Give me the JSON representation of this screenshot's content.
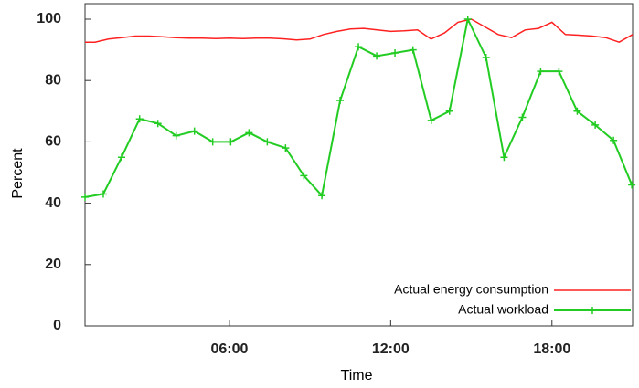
{
  "chart_data": {
    "type": "line",
    "xlabel": "Time",
    "ylabel": "Percent",
    "xlim": [
      0.63,
      21
    ],
    "ylim": [
      0,
      100
    ],
    "xticks": [
      {
        "value": 6,
        "label": "06:00"
      },
      {
        "value": 12,
        "label": "12:00"
      },
      {
        "value": 18,
        "label": "18:00"
      }
    ],
    "yticks": [
      0,
      20,
      40,
      60,
      80,
      100
    ],
    "grid": false,
    "legend": "lower right",
    "series": [
      {
        "name": "Actual energy consumption",
        "color": "#ff2020",
        "marker": false,
        "x": [
          0.63,
          1,
          1.5,
          2,
          2.5,
          3,
          3.5,
          4,
          4.5,
          5,
          5.5,
          6,
          6.5,
          7,
          7.5,
          8,
          8.5,
          9,
          9.5,
          10,
          10.5,
          11,
          11.5,
          12,
          12.5,
          13,
          13.5,
          14,
          14.5,
          15,
          15.5,
          16,
          16.5,
          17,
          17.5,
          18,
          18.5,
          19,
          19.5,
          20,
          20.5,
          21
        ],
        "values": [
          92.5,
          92.5,
          93.5,
          94,
          94.5,
          94.5,
          94.3,
          94,
          93.8,
          93.8,
          93.7,
          93.8,
          93.7,
          93.8,
          93.8,
          93.6,
          93.2,
          93.5,
          95,
          96,
          96.8,
          97,
          96.5,
          96,
          96.2,
          96.5,
          93.5,
          95.5,
          99,
          100,
          97.5,
          95,
          94,
          96.5,
          97,
          99,
          95,
          94.8,
          94.5,
          94,
          92.5,
          95
        ]
      },
      {
        "name": "Actual workload",
        "color": "#22cc22",
        "marker": true,
        "x": [
          0.63,
          1.31,
          1.99,
          2.66,
          3.34,
          4.02,
          4.7,
          5.38,
          6.05,
          6.73,
          7.41,
          8.09,
          8.77,
          9.44,
          10.12,
          10.8,
          11.48,
          12.16,
          12.83,
          13.51,
          14.19,
          14.87,
          15.55,
          16.22,
          16.9,
          17.58,
          18.26,
          18.94,
          19.61,
          20.29,
          20.97
        ],
        "values": [
          42,
          43,
          55,
          67.5,
          66,
          62,
          63.5,
          60,
          60,
          63,
          60,
          58,
          49,
          42.5,
          73.5,
          91,
          88,
          89,
          90,
          67,
          70,
          100,
          87.5,
          55,
          68,
          83,
          83,
          70,
          65.5,
          60.5,
          46
        ]
      }
    ]
  }
}
